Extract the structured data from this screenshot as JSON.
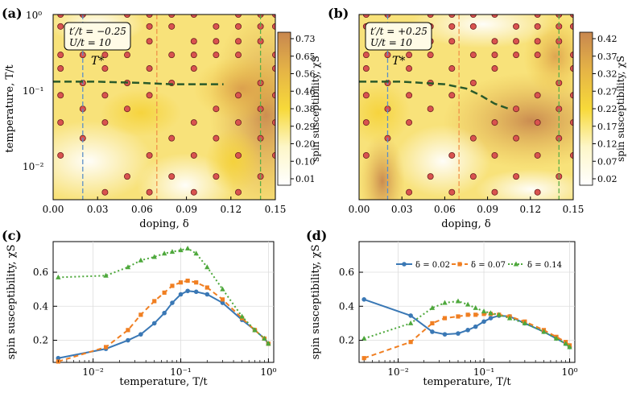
{
  "chart_data": [
    {
      "panel": "(a)",
      "type": "heatmap",
      "xlabel": "doping, δ",
      "ylabel": "temperature, T/t",
      "xlim": [
        0,
        0.15
      ],
      "ylim": [
        0.004,
        1
      ],
      "yscale": "log",
      "x_ticks": [
        "0.00",
        "0.03",
        "0.06",
        "0.09",
        "0.12",
        "0.15"
      ],
      "y_ticks": [
        "10⁻²",
        "10⁻¹",
        "10⁰"
      ],
      "params": [
        "t′/t = −0.25",
        "U/t = 10"
      ],
      "annotation": "T*",
      "colorbar_label": "spin susceptibility, χS",
      "colorbar_ticks": [
        "0.01",
        "0.10",
        "0.20",
        "0.29",
        "0.38",
        "0.46",
        "0.56",
        "0.65",
        "0.73"
      ],
      "vlines": [
        0.02,
        0.07,
        0.14
      ],
      "tstar": {
        "x": [
          0.0,
          0.03,
          0.06,
          0.08,
          0.1,
          0.115
        ],
        "y": [
          0.135,
          0.135,
          0.13,
          0.125,
          0.125,
          0.125
        ]
      }
    },
    {
      "panel": "(b)",
      "type": "heatmap",
      "xlabel": "doping, δ",
      "ylabel": "",
      "xlim": [
        0,
        0.15
      ],
      "ylim": [
        0.004,
        1
      ],
      "yscale": "log",
      "x_ticks": [
        "0.00",
        "0.03",
        "0.06",
        "0.09",
        "0.12",
        "0.15"
      ],
      "params": [
        "t′/t = +0.25",
        "U/t = 10"
      ],
      "annotation": "T*",
      "colorbar_label": "spin susceptibility, χS",
      "colorbar_ticks": [
        "0.02",
        "0.07",
        "0.12",
        "0.17",
        "0.22",
        "0.27",
        "0.32",
        "0.37",
        "0.42"
      ],
      "vlines": [
        0.02,
        0.07,
        0.14
      ],
      "tstar": {
        "x": [
          0.0,
          0.03,
          0.06,
          0.075,
          0.085,
          0.095,
          0.105
        ],
        "y": [
          0.135,
          0.135,
          0.125,
          0.11,
          0.09,
          0.07,
          0.06
        ]
      }
    },
    {
      "panel": "(c)",
      "type": "line",
      "xscale": "log",
      "xlabel": "temperature, T/t",
      "ylabel": "spin susceptibility, χS",
      "xlim": [
        0.0035,
        1.15
      ],
      "ylim": [
        0.07,
        0.78
      ],
      "x_ticks": [
        "10⁻²",
        "10⁻¹",
        "10⁰"
      ],
      "y_ticks": [
        "0.2",
        "0.4",
        "0.6"
      ],
      "series": [
        {
          "name": "δ = 0.02",
          "color": "#3a78b5",
          "style": "solid",
          "marker": "circle",
          "x": [
            0.004,
            0.014,
            0.025,
            0.035,
            0.05,
            0.065,
            0.08,
            0.1,
            0.12,
            0.15,
            0.2,
            0.3,
            0.5,
            0.7,
            0.9,
            1.0
          ],
          "y": [
            0.095,
            0.15,
            0.2,
            0.235,
            0.3,
            0.36,
            0.42,
            0.47,
            0.49,
            0.485,
            0.47,
            0.42,
            0.32,
            0.26,
            0.21,
            0.18
          ]
        },
        {
          "name": "δ = 0.07",
          "color": "#f07f22",
          "style": "dashed",
          "marker": "square",
          "x": [
            0.004,
            0.014,
            0.025,
            0.035,
            0.05,
            0.065,
            0.08,
            0.1,
            0.12,
            0.15,
            0.2,
            0.3,
            0.5,
            0.7,
            0.9,
            1.0
          ],
          "y": [
            0.075,
            0.16,
            0.26,
            0.35,
            0.43,
            0.48,
            0.52,
            0.54,
            0.55,
            0.54,
            0.51,
            0.44,
            0.33,
            0.26,
            0.21,
            0.18
          ]
        },
        {
          "name": "δ = 0.14",
          "color": "#4ea83c",
          "style": "dotted",
          "marker": "triangle",
          "x": [
            0.004,
            0.014,
            0.025,
            0.035,
            0.05,
            0.065,
            0.08,
            0.1,
            0.12,
            0.15,
            0.2,
            0.3,
            0.5,
            0.7,
            0.9,
            1.0
          ],
          "y": [
            0.57,
            0.58,
            0.63,
            0.67,
            0.69,
            0.71,
            0.72,
            0.73,
            0.74,
            0.71,
            0.63,
            0.5,
            0.34,
            0.26,
            0.21,
            0.18
          ]
        }
      ]
    },
    {
      "panel": "(d)",
      "type": "line",
      "xscale": "log",
      "xlabel": "temperature, T/t",
      "ylabel": "spin susceptibility, χS",
      "xlim": [
        0.0035,
        1.15
      ],
      "ylim": [
        0.07,
        0.78
      ],
      "x_ticks": [
        "10⁻²",
        "10⁻¹",
        "10⁰"
      ],
      "y_ticks": [
        "0.2",
        "0.4",
        "0.6"
      ],
      "legend_position": "top",
      "series": [
        {
          "name": "δ = 0.02",
          "color": "#3a78b5",
          "style": "solid",
          "marker": "circle",
          "x": [
            0.004,
            0.014,
            0.025,
            0.035,
            0.05,
            0.065,
            0.08,
            0.1,
            0.12,
            0.15,
            0.2,
            0.3,
            0.5,
            0.7,
            0.9,
            1.0
          ],
          "y": [
            0.44,
            0.345,
            0.25,
            0.235,
            0.24,
            0.26,
            0.28,
            0.31,
            0.33,
            0.345,
            0.34,
            0.3,
            0.25,
            0.21,
            0.18,
            0.16
          ]
        },
        {
          "name": "δ = 0.07",
          "color": "#f07f22",
          "style": "dashed",
          "marker": "square",
          "x": [
            0.004,
            0.014,
            0.025,
            0.035,
            0.05,
            0.065,
            0.08,
            0.1,
            0.12,
            0.15,
            0.2,
            0.3,
            0.5,
            0.7,
            0.9,
            1.0
          ],
          "y": [
            0.095,
            0.19,
            0.3,
            0.33,
            0.34,
            0.35,
            0.35,
            0.355,
            0.355,
            0.35,
            0.34,
            0.31,
            0.26,
            0.22,
            0.19,
            0.17
          ]
        },
        {
          "name": "δ = 0.14",
          "color": "#4ea83c",
          "style": "dotted",
          "marker": "triangle",
          "x": [
            0.004,
            0.014,
            0.025,
            0.035,
            0.05,
            0.065,
            0.08,
            0.1,
            0.12,
            0.15,
            0.2,
            0.3,
            0.5,
            0.7,
            0.9,
            1.0
          ],
          "y": [
            0.21,
            0.3,
            0.39,
            0.42,
            0.43,
            0.41,
            0.39,
            0.37,
            0.36,
            0.35,
            0.33,
            0.3,
            0.25,
            0.21,
            0.18,
            0.16
          ]
        }
      ]
    }
  ]
}
